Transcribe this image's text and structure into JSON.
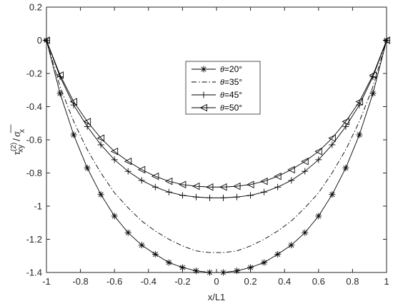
{
  "chart_data": {
    "type": "line",
    "title": "",
    "xlabel": "x/L1",
    "ylabel": {
      "symbol": "τ",
      "superscript": "(2)",
      "subscript": "xy",
      "divider": "/",
      "symbol2": "σ",
      "bar": "—",
      "subscript2": "x"
    },
    "xlim": [
      -1,
      1
    ],
    "ylim": [
      -1.4,
      0.2
    ],
    "xticks": [
      -1,
      -0.8,
      -0.6,
      -0.4,
      -0.2,
      0,
      0.2,
      0.4,
      0.6,
      0.8,
      1
    ],
    "xtick_labels": [
      "-1",
      "-0.8",
      "-0.6",
      "-0.4",
      "-0.2",
      "0",
      "0.2",
      "0.4",
      "0.6",
      "0.8",
      "1"
    ],
    "yticks": [
      0.2,
      0,
      -0.2,
      -0.4,
      -0.6,
      -0.8,
      -1,
      -1.2,
      -1.4
    ],
    "ytick_labels": [
      "0.2",
      "0",
      "-0.2",
      "-0.4",
      "-0.6",
      "-0.8",
      "-1",
      "-1.2",
      "-1.4"
    ],
    "grid": false,
    "legend_position": "upper-center",
    "x": [
      -1,
      -0.92,
      -0.84,
      -0.76,
      -0.68,
      -0.6,
      -0.52,
      -0.44,
      -0.36,
      -0.28,
      -0.2,
      -0.12,
      -0.04,
      0.04,
      0.12,
      0.2,
      0.28,
      0.36,
      0.44,
      0.52,
      0.6,
      0.68,
      0.76,
      0.84,
      0.92,
      1
    ],
    "series": [
      {
        "name": "θ=20°",
        "marker": "asterisk",
        "linestyle": "solid",
        "values": [
          0,
          -0.32,
          -0.57,
          -0.77,
          -0.93,
          -1.06,
          -1.16,
          -1.235,
          -1.29,
          -1.34,
          -1.37,
          -1.39,
          -1.4,
          -1.4,
          -1.39,
          -1.37,
          -1.34,
          -1.29,
          -1.235,
          -1.16,
          -1.06,
          -0.93,
          -0.77,
          -0.57,
          -0.32,
          0
        ]
      },
      {
        "name": "θ=35°",
        "marker": "none",
        "linestyle": "dashdot",
        "values": [
          0,
          -0.28,
          -0.49,
          -0.66,
          -0.8,
          -0.92,
          -1.01,
          -1.09,
          -1.15,
          -1.2,
          -1.24,
          -1.27,
          -1.28,
          -1.28,
          -1.27,
          -1.24,
          -1.2,
          -1.15,
          -1.09,
          -1.01,
          -0.92,
          -0.8,
          -0.66,
          -0.49,
          -0.28,
          0
        ]
      },
      {
        "name": "θ=45°",
        "marker": "plus",
        "linestyle": "solid",
        "values": [
          0,
          -0.22,
          -0.39,
          -0.52,
          -0.63,
          -0.72,
          -0.79,
          -0.845,
          -0.885,
          -0.915,
          -0.935,
          -0.945,
          -0.95,
          -0.95,
          -0.945,
          -0.935,
          -0.915,
          -0.885,
          -0.845,
          -0.79,
          -0.72,
          -0.63,
          -0.52,
          -0.39,
          -0.22,
          0
        ]
      },
      {
        "name": "θ=50°",
        "marker": "triangle-left",
        "linestyle": "solid",
        "values": [
          0,
          -0.21,
          -0.37,
          -0.49,
          -0.59,
          -0.67,
          -0.73,
          -0.78,
          -0.82,
          -0.85,
          -0.87,
          -0.88,
          -0.885,
          -0.885,
          -0.88,
          -0.87,
          -0.85,
          -0.82,
          -0.78,
          -0.73,
          -0.67,
          -0.59,
          -0.49,
          -0.37,
          -0.21,
          0
        ]
      }
    ]
  }
}
